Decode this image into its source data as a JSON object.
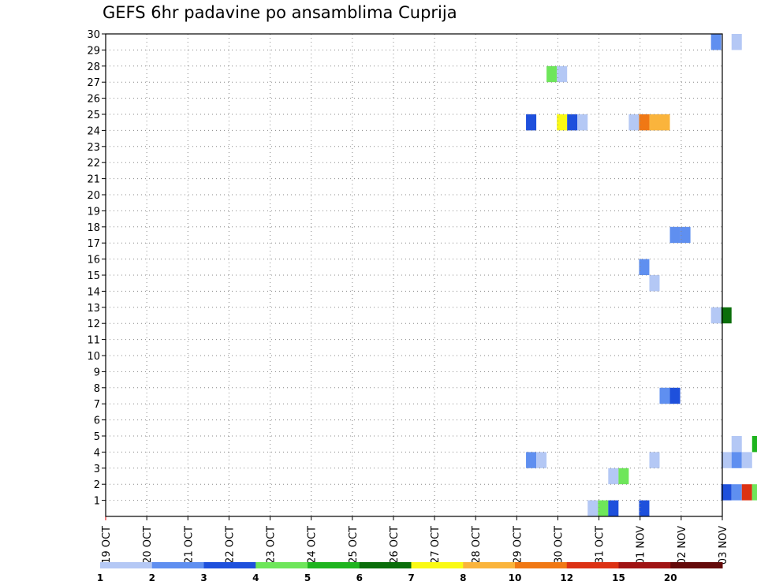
{
  "chart_data": {
    "type": "heatmap",
    "title": "GEFS 6hr padavine po ansamblima Cuprija",
    "xlabel": "",
    "ylabel": "",
    "x_ticks": [
      "19 OCT",
      "20 OCT",
      "21 OCT",
      "22 OCT",
      "23 OCT",
      "24 OCT",
      "25 OCT",
      "26 OCT",
      "27 OCT",
      "28 OCT",
      "29 OCT",
      "30 OCT",
      "31 OCT",
      "01 NOV",
      "02 NOV",
      "03 NOV"
    ],
    "y_ticks": [
      1,
      2,
      3,
      4,
      5,
      6,
      7,
      8,
      9,
      10,
      11,
      12,
      13,
      14,
      15,
      16,
      17,
      18,
      19,
      20,
      21,
      22,
      23,
      24,
      25,
      26,
      27,
      28,
      29,
      30
    ],
    "xlim": [
      0,
      15
    ],
    "ylim": [
      0,
      30
    ],
    "grid": true,
    "colorbar": {
      "labels": [
        "1",
        "2",
        "3",
        "4",
        "5",
        "6",
        "7",
        "8",
        "10",
        "12",
        "15",
        "20"
      ],
      "colors": [
        "#b4c8f5",
        "#5f8ff0",
        "#1e50dc",
        "#6ee65a",
        "#1eb41e",
        "#0a6e0a",
        "#fafa14",
        "#fab43c",
        "#f07814",
        "#dc3214",
        "#a01414",
        "#640a0a"
      ]
    },
    "cells": [
      {
        "day": 14.85,
        "member": 30,
        "color": "#5f8ff0"
      },
      {
        "day": 15.35,
        "member": 30,
        "color": "#b4c8f5"
      },
      {
        "day": 10.85,
        "member": 28,
        "color": "#6ee65a"
      },
      {
        "day": 11.1,
        "member": 28,
        "color": "#b4c8f5"
      },
      {
        "day": 10.35,
        "member": 25,
        "color": "#1e50dc"
      },
      {
        "day": 11.1,
        "member": 25,
        "color": "#fafa14"
      },
      {
        "day": 11.35,
        "member": 25,
        "color": "#1e50dc"
      },
      {
        "day": 11.6,
        "member": 25,
        "color": "#b4c8f5"
      },
      {
        "day": 12.85,
        "member": 25,
        "color": "#b4c8f5"
      },
      {
        "day": 13.1,
        "member": 25,
        "color": "#f07814"
      },
      {
        "day": 13.35,
        "member": 25,
        "color": "#fab43c"
      },
      {
        "day": 13.6,
        "member": 25,
        "color": "#fab43c"
      },
      {
        "day": 13.85,
        "member": 18,
        "color": "#5f8ff0"
      },
      {
        "day": 14.1,
        "member": 18,
        "color": "#5f8ff0"
      },
      {
        "day": 13.1,
        "member": 16,
        "color": "#5f8ff0"
      },
      {
        "day": 13.35,
        "member": 15,
        "color": "#b4c8f5"
      },
      {
        "day": 14.85,
        "member": 13,
        "color": "#b4c8f5"
      },
      {
        "day": 15.1,
        "member": 13,
        "color": "#0a6e0a"
      },
      {
        "day": 13.6,
        "member": 8,
        "color": "#5f8ff0"
      },
      {
        "day": 13.85,
        "member": 8,
        "color": "#1e50dc"
      },
      {
        "day": 15.35,
        "member": 5,
        "color": "#b4c8f5"
      },
      {
        "day": 15.85,
        "member": 5,
        "color": "#1eb41e"
      },
      {
        "day": 10.35,
        "member": 4,
        "color": "#5f8ff0"
      },
      {
        "day": 10.6,
        "member": 4,
        "color": "#b4c8f5"
      },
      {
        "day": 13.35,
        "member": 4,
        "color": "#b4c8f5"
      },
      {
        "day": 15.1,
        "member": 4,
        "color": "#b4c8f5"
      },
      {
        "day": 15.35,
        "member": 4,
        "color": "#5f8ff0"
      },
      {
        "day": 15.6,
        "member": 4,
        "color": "#b4c8f5"
      },
      {
        "day": 12.35,
        "member": 3,
        "color": "#b4c8f5"
      },
      {
        "day": 12.6,
        "member": 3,
        "color": "#6ee65a"
      },
      {
        "day": 15.1,
        "member": 2,
        "color": "#1e50dc"
      },
      {
        "day": 15.35,
        "member": 2,
        "color": "#5f8ff0"
      },
      {
        "day": 15.6,
        "member": 2,
        "color": "#dc3214"
      },
      {
        "day": 15.85,
        "member": 2,
        "color": "#6ee65a"
      },
      {
        "day": 11.85,
        "member": 1,
        "color": "#b4c8f5"
      },
      {
        "day": 12.1,
        "member": 1,
        "color": "#6ee65a"
      },
      {
        "day": 12.35,
        "member": 1,
        "color": "#1e50dc"
      },
      {
        "day": 13.1,
        "member": 1,
        "color": "#1e50dc"
      }
    ]
  }
}
